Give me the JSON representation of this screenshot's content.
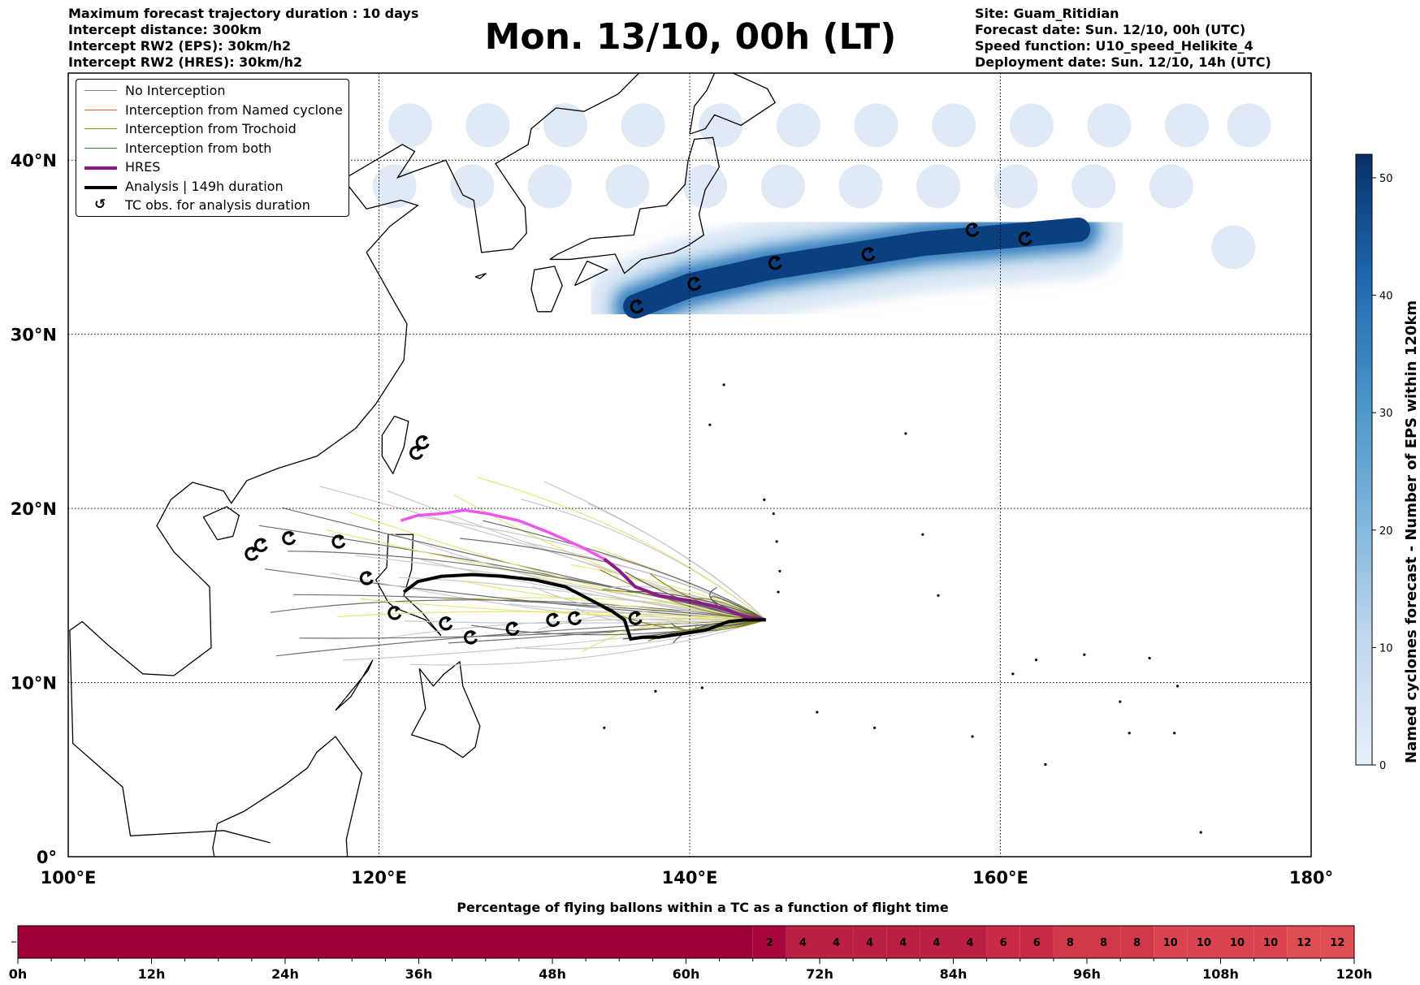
{
  "header_left": [
    "Maximum forecast trajectory duration : 10 days",
    "Intercept distance: 300km",
    "Intercept RW2 (EPS):  30km/h2",
    "Intercept RW2 (HRES): 30km/h2"
  ],
  "header_right": [
    "Site: Guam_Ritidian",
    "Forecast date: Sun. 12/10, 00h (UTC)",
    "Speed function: U10_speed_Helikite_4",
    "Deployment date: Sun. 12/10, 14h (UTC)"
  ],
  "title": "Mon. 13/10, 00h (LT)",
  "legend": [
    {
      "label": "No Interception",
      "color": "#808080",
      "width": 1
    },
    {
      "label": "Interception from Named cyclone",
      "color": "#e8591a",
      "width": 1
    },
    {
      "label": "Interception from Trochoid",
      "color": "#8a8a10",
      "width": 1
    },
    {
      "label": "Interception from both",
      "color": "#2e8b2e",
      "width": 1
    },
    {
      "label": "HRES",
      "color": "#8b1a8b",
      "width": 4
    },
    {
      "label": "Analysis | 149h duration",
      "color": "#000000",
      "width": 4
    },
    {
      "label": "TC obs. for analysis duration",
      "color": "#000000",
      "width": 0
    }
  ],
  "colorbar": {
    "label": "Named cyclones forecast - Number of EPS within 120km",
    "ticks": [
      "0",
      "10",
      "20",
      "30",
      "40",
      "50"
    ],
    "min": 0,
    "max": 52,
    "color_low": "#e6f0fa",
    "color_high": "#08306b"
  },
  "chart_data": {
    "type": "map",
    "xlim": [
      100,
      180
    ],
    "ylim": [
      0,
      45
    ],
    "lon_ticks": [
      {
        "value": 100,
        "label": "100°E"
      },
      {
        "value": 120,
        "label": "120°E"
      },
      {
        "value": 140,
        "label": "140°E"
      },
      {
        "value": 160,
        "label": "160°E"
      },
      {
        "value": 180,
        "label": "180°"
      }
    ],
    "lat_ticks": [
      {
        "value": 0,
        "label": "0°"
      },
      {
        "value": 10,
        "label": "10°N"
      },
      {
        "value": 20,
        "label": "20°N"
      },
      {
        "value": 30,
        "label": "30°N"
      },
      {
        "value": 40,
        "label": "40°N"
      }
    ],
    "grid": true,
    "legend_position": "top-left",
    "launch_site": [
      144.9,
      13.6
    ],
    "hres_track": [
      [
        121.4,
        19.3
      ],
      [
        122.5,
        19.6
      ],
      [
        124,
        19.7
      ],
      [
        125.5,
        19.9
      ],
      [
        127,
        19.7
      ],
      [
        129,
        19.3
      ],
      [
        131,
        18.6
      ],
      [
        133,
        17.8
      ],
      [
        134.5,
        17.1
      ],
      [
        135.5,
        16.4
      ],
      [
        136.5,
        15.5
      ],
      [
        138,
        15
      ],
      [
        140,
        14.7
      ],
      [
        142,
        14.3
      ],
      [
        143.5,
        13.8
      ],
      [
        144.9,
        13.6
      ]
    ],
    "analysis_track": [
      [
        121.6,
        15.2
      ],
      [
        122.5,
        15.8
      ],
      [
        124,
        16.1
      ],
      [
        126,
        16.2
      ],
      [
        128,
        16.1
      ],
      [
        130,
        15.9
      ],
      [
        132,
        15.5
      ],
      [
        133.5,
        14.8
      ],
      [
        135,
        14.1
      ],
      [
        135.8,
        13.6
      ],
      [
        136.2,
        12.5
      ],
      [
        137,
        12.6
      ],
      [
        138,
        12.6
      ],
      [
        139.5,
        12.8
      ],
      [
        141,
        13
      ],
      [
        142.5,
        13.5
      ],
      [
        143.5,
        13.6
      ],
      [
        144.9,
        13.6
      ]
    ],
    "tc_obs": [
      [
        111.8,
        17.4
      ],
      [
        112.4,
        17.9
      ],
      [
        114.2,
        18.3
      ],
      [
        117.4,
        18.1
      ],
      [
        119.2,
        16
      ],
      [
        121,
        14
      ],
      [
        122.4,
        23.2
      ],
      [
        122.8,
        23.8
      ],
      [
        124.3,
        13.4
      ],
      [
        125.9,
        12.6
      ],
      [
        128.6,
        13.1
      ],
      [
        131.2,
        13.6
      ],
      [
        132.6,
        13.7
      ],
      [
        136.5,
        13.7
      ],
      [
        136.6,
        31.6
      ],
      [
        140.3,
        32.9
      ],
      [
        145.5,
        34.1
      ],
      [
        151.5,
        34.6
      ],
      [
        158.2,
        36
      ],
      [
        161.6,
        35.5
      ]
    ],
    "ens_bubbles_row1": [
      [
        122,
        42
      ],
      [
        127,
        42
      ],
      [
        132,
        42
      ],
      [
        137,
        42
      ],
      [
        142,
        42
      ],
      [
        147,
        42
      ],
      [
        152,
        42
      ],
      [
        157,
        42
      ],
      [
        162,
        42
      ],
      [
        167,
        42
      ],
      [
        172,
        42
      ],
      [
        176,
        42
      ]
    ],
    "ens_bubbles_row2": [
      [
        121,
        38.5
      ],
      [
        126,
        38.5
      ],
      [
        131,
        38.5
      ],
      [
        136,
        38.5
      ],
      [
        141,
        38.5
      ],
      [
        146,
        38.5
      ],
      [
        151,
        38.5
      ],
      [
        156,
        38.5
      ],
      [
        161,
        38.5
      ],
      [
        166,
        38.5
      ],
      [
        171,
        38.5
      ]
    ],
    "ens_bubbles_extra": [
      [
        175,
        35
      ]
    ],
    "density_core": [
      [
        136.5,
        31.6
      ],
      [
        140,
        32.8
      ],
      [
        145,
        33.8
      ],
      [
        150,
        34.5
      ],
      [
        155,
        35.2
      ],
      [
        160,
        35.6
      ],
      [
        165,
        36
      ]
    ],
    "balloon_timeline": {
      "title": "Percentage of flying ballons within a TC as a function of flight time",
      "time_labels": [
        "0h",
        "12h",
        "24h",
        "36h",
        "48h",
        "60h",
        "72h",
        "84h",
        "96h",
        "108h",
        "120h"
      ],
      "leading_zero_hours": 66,
      "segments": [
        {
          "label": "2",
          "value": 2
        },
        {
          "label": "4",
          "value": 4
        },
        {
          "label": "4",
          "value": 4
        },
        {
          "label": "4",
          "value": 4
        },
        {
          "label": "4",
          "value": 4
        },
        {
          "label": "4",
          "value": 4
        },
        {
          "label": "4",
          "value": 4
        },
        {
          "label": "6",
          "value": 6
        },
        {
          "label": "6",
          "value": 6
        },
        {
          "label": "8",
          "value": 8
        },
        {
          "label": "8",
          "value": 8
        },
        {
          "label": "8",
          "value": 8
        },
        {
          "label": "10",
          "value": 10
        },
        {
          "label": "10",
          "value": 10
        },
        {
          "label": "10",
          "value": 10
        },
        {
          "label": "10",
          "value": 10
        },
        {
          "label": "12",
          "value": 12
        },
        {
          "label": "12",
          "value": 12
        }
      ]
    }
  }
}
